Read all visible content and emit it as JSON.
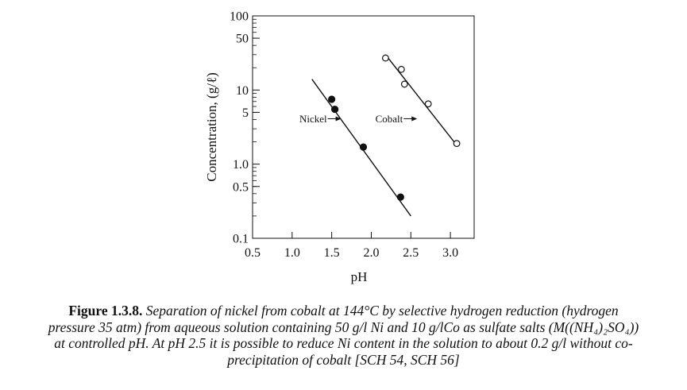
{
  "chart_data": {
    "type": "scatter",
    "ylabel": "Concentration, (g/ℓ)",
    "xlabel": "pH",
    "xlim": [
      0.5,
      3.3
    ],
    "ylim": [
      0.1,
      100
    ],
    "yscale": "log",
    "x_ticks": [
      0.5,
      1.0,
      1.5,
      2.0,
      2.5,
      3.0
    ],
    "x_tick_labels": [
      "0.5",
      "1.0",
      "1.5",
      "2.0",
      "2.5",
      "3.0"
    ],
    "y_ticks": [
      100,
      50,
      10,
      5,
      1.0,
      0.5,
      0.1
    ],
    "y_tick_labels": [
      "100",
      "50",
      "10",
      "5",
      "1.0",
      "0.5",
      "0.1"
    ],
    "grid": false,
    "series": [
      {
        "name": "Nickel",
        "marker": "filled-circle",
        "color": "#111111",
        "points": [
          [
            1.5,
            7.5
          ],
          [
            1.54,
            5.5
          ],
          [
            1.9,
            1.7
          ],
          [
            2.37,
            0.36
          ]
        ],
        "fit_line": [
          [
            1.25,
            14
          ],
          [
            2.5,
            0.2
          ]
        ]
      },
      {
        "name": "Cobalt",
        "marker": "open-circle",
        "color": "#111111",
        "points": [
          [
            2.18,
            27
          ],
          [
            2.38,
            19
          ],
          [
            2.42,
            12
          ],
          [
            2.72,
            6.5
          ],
          [
            3.08,
            1.9
          ]
        ],
        "fit_line": [
          [
            2.18,
            30
          ],
          [
            3.08,
            1.8
          ]
        ]
      }
    ],
    "annotations": [
      {
        "text": "Nickel",
        "arrow_to": [
          1.62,
          4.1
        ]
      },
      {
        "text": "Cobalt",
        "arrow_to": [
          2.58,
          4.1
        ]
      }
    ]
  },
  "caption": {
    "label": "Figure 1.3.8.",
    "text": "Separation of nickel from cobalt at 144°C by selective hydrogen reduction (hydrogen pressure 35 atm) from aqueous solution containing 50 g/l Ni and 10 g/lCo as sulfate salts (M((NH₄)₂SO₄)) at controlled pH. At pH 2.5 it is possible to reduce Ni content in the solution to about 0.2 g/l without co-precipitation of cobalt [SCH 54, SCH 56]"
  }
}
